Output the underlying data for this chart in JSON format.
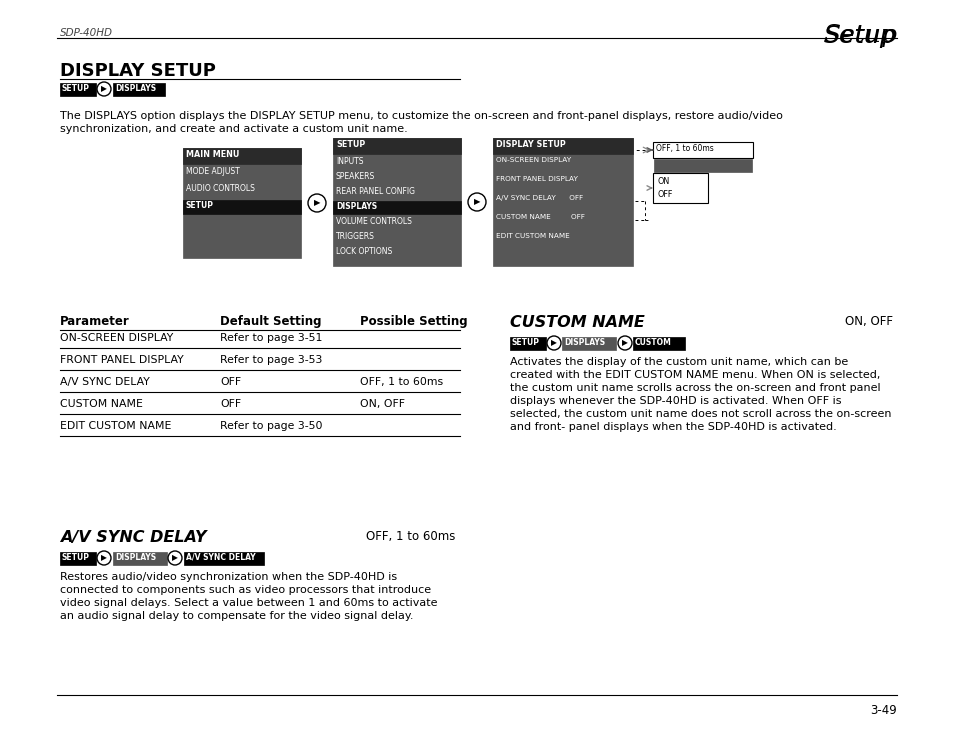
{
  "page_bg": "#ffffff",
  "header_left": "SDP-40HD",
  "header_right": "Setup",
  "footer_right": "3-49",
  "title": "DISPLAY SETUP",
  "breadcrumb1": [
    "SETUP",
    "DISPLAYS"
  ],
  "intro_text1": "The DISPLAYS option displays the DISPLAY SETUP menu, to customize the on-screen and front-panel displays, restore audio/video",
  "intro_text2": "synchronization, and create and activate a custom unit name.",
  "menu1_title": "MAIN MENU",
  "menu1_items": [
    "MODE ADJUST",
    "AUDIO CONTROLS",
    "SETUP"
  ],
  "menu1_selected": "SETUP",
  "menu2_title": "SETUP",
  "menu2_items": [
    "INPUTS",
    "SPEAKERS",
    "REAR PANEL CONFIG",
    "DISPLAYS",
    "VOLUME CONTROLS",
    "TRIGGERS",
    "LOCK OPTIONS"
  ],
  "menu2_selected": "DISPLAYS",
  "menu3_title": "DISPLAY SETUP",
  "menu3_items": [
    "ON-SCREEN DISPLAY",
    "FRONT PANEL DISPLAY",
    "A/V SYNC DELAY    OFF",
    "CUSTOM NAME       OFF",
    "EDIT CUSTOM NAME"
  ],
  "popup1_text": "OFF, 1 to 60ms",
  "popup2_items": [
    "ON",
    "OFF"
  ],
  "table_header": [
    "Parameter",
    "Default Setting",
    "Possible Setting"
  ],
  "table_rows": [
    [
      "ON-SCREEN DISPLAY",
      "Refer to page 3-51",
      ""
    ],
    [
      "FRONT PANEL DISPLAY",
      "Refer to page 3-53",
      ""
    ],
    [
      "A/V SYNC DELAY",
      "OFF",
      "OFF, 1 to 60ms"
    ],
    [
      "CUSTOM NAME",
      "OFF",
      "ON, OFF"
    ],
    [
      "EDIT CUSTOM NAME",
      "Refer to page 3-50",
      ""
    ]
  ],
  "section2_title": "A/V SYNC DELAY",
  "section2_range": "OFF, 1 to 60ms",
  "breadcrumb2": [
    "SETUP",
    "DISPLAYS",
    "A/V SYNC DELAY"
  ],
  "section2_text": "Restores audio/video synchronization when the SDP-40HD is\nconnected to components such as video processors that introduce\nvideo signal delays. Select a value between 1 and 60ms to activate\nan audio signal delay to compensate for the video signal delay.",
  "section3_title": "CUSTOM NAME",
  "section3_range": "ON, OFF",
  "breadcrumb3": [
    "SETUP",
    "DISPLAYS",
    "CUSTOM"
  ],
  "section3_text": "Activates the display of the custom unit name, which can be\ncreated with the EDIT CUSTOM NAME menu. When ON is selected,\nthe custom unit name scrolls across the on-screen and front panel\ndisplays whenever the SDP-40HD is activated. When OFF is\nselected, the custom unit name does not scroll across the on-screen\nand front- panel displays when the SDP-40HD is activated."
}
